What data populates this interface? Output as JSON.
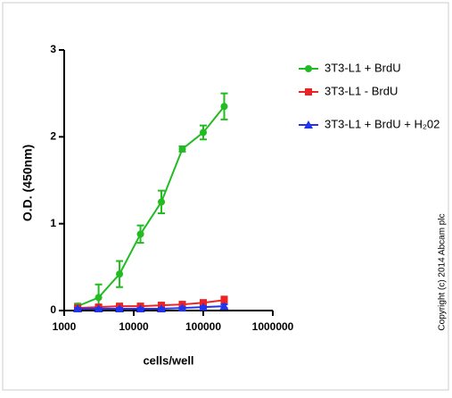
{
  "chart_data": {
    "type": "line",
    "x_label": "cells/well",
    "y_label": "O.D. (450nm)",
    "copyright": "Copyright (c) 2014 Abcam plc",
    "x": [
      1562,
      3125,
      6250,
      12500,
      25000,
      50000,
      100000,
      200000
    ],
    "series": [
      {
        "name": "3T3-L1 + BrdU",
        "color": "#22bb22",
        "marker": "circle",
        "values": [
          0.05,
          0.15,
          0.42,
          0.88,
          1.25,
          1.86,
          2.05,
          2.35
        ],
        "errors": [
          0.03,
          0.15,
          0.15,
          0.1,
          0.13,
          0.03,
          0.08,
          0.15
        ]
      },
      {
        "name": "3T3-L1 - BrdU",
        "color": "#ee2222",
        "marker": "square",
        "values": [
          0.03,
          0.04,
          0.05,
          0.05,
          0.06,
          0.07,
          0.09,
          0.12
        ],
        "errors": [
          0.02,
          0.02,
          0.02,
          0.02,
          0.03,
          0.03,
          0.03,
          0.04
        ]
      },
      {
        "name": "3T3-L1 + BrdU + H₂02",
        "color": "#2233ee",
        "marker": "triangle",
        "values": [
          0.02,
          0.02,
          0.02,
          0.02,
          0.02,
          0.03,
          0.04,
          0.05
        ],
        "errors": [
          0.01,
          0.01,
          0.01,
          0.01,
          0.01,
          0.01,
          0.01,
          0.02
        ]
      }
    ],
    "xscale": "log",
    "xlim": [
      1000,
      1000000
    ],
    "xticks": [
      1000,
      10000,
      100000,
      1000000
    ],
    "ylim": [
      0,
      3
    ],
    "yticks": [
      0,
      1,
      2,
      3
    ],
    "grid": false
  }
}
